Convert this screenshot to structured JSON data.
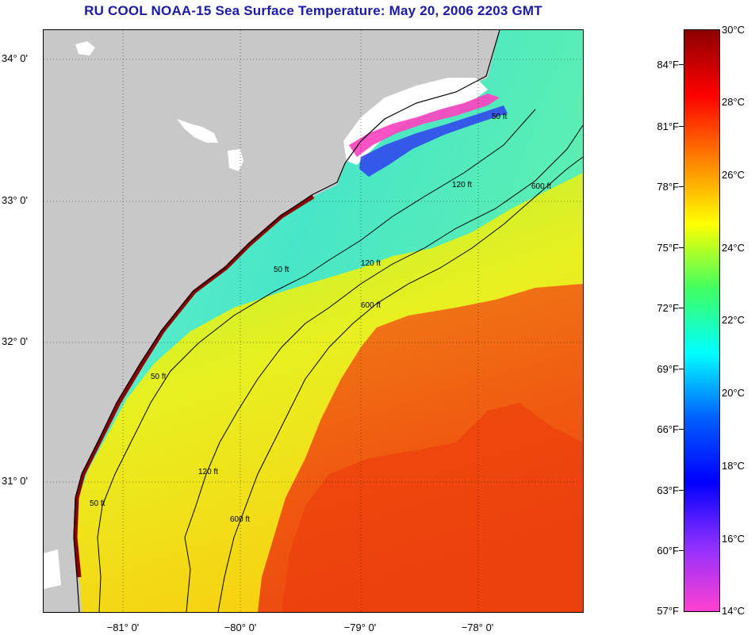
{
  "title": "RU COOL  NOAA-15  Sea Surface Temperature:  May 20, 2006 2203 GMT",
  "map": {
    "longitude_labels": [
      "−81° 0'",
      "−80° 0'",
      "−79° 0'",
      "−78° 0'"
    ],
    "latitude_labels": [
      "34° 0'",
      "33° 0'",
      "32° 0'",
      "31° 0'"
    ],
    "isobath_labels": [
      "50 ft",
      "120 ft",
      "600 ft"
    ],
    "colors": {
      "land": "#c8c8c8",
      "cloud": "#ffffff",
      "coast_warm": "#8b0000",
      "cold_plume": "#ff40c0",
      "shelf_cool": "#40f0c0",
      "mid_shelf": "#c8f020",
      "gulf_stream": "#f05010"
    }
  },
  "colorbar": {
    "fahrenheit_labels": [
      "84°F",
      "81°F",
      "78°F",
      "75°F",
      "72°F",
      "69°F",
      "66°F",
      "63°F",
      "60°F",
      "57°F"
    ],
    "celsius_labels": [
      "30°C",
      "28°C",
      "26°C",
      "24°C",
      "22°C",
      "20°C",
      "18°C",
      "16°C",
      "14°C"
    ],
    "range_celsius": [
      14,
      30
    ],
    "gradient_stops": [
      "#8b0000",
      "#ff0000",
      "#ff8000",
      "#ffff00",
      "#40ff60",
      "#00ffff",
      "#0060ff",
      "#0000ff",
      "#9030ff",
      "#ff40d0"
    ]
  }
}
